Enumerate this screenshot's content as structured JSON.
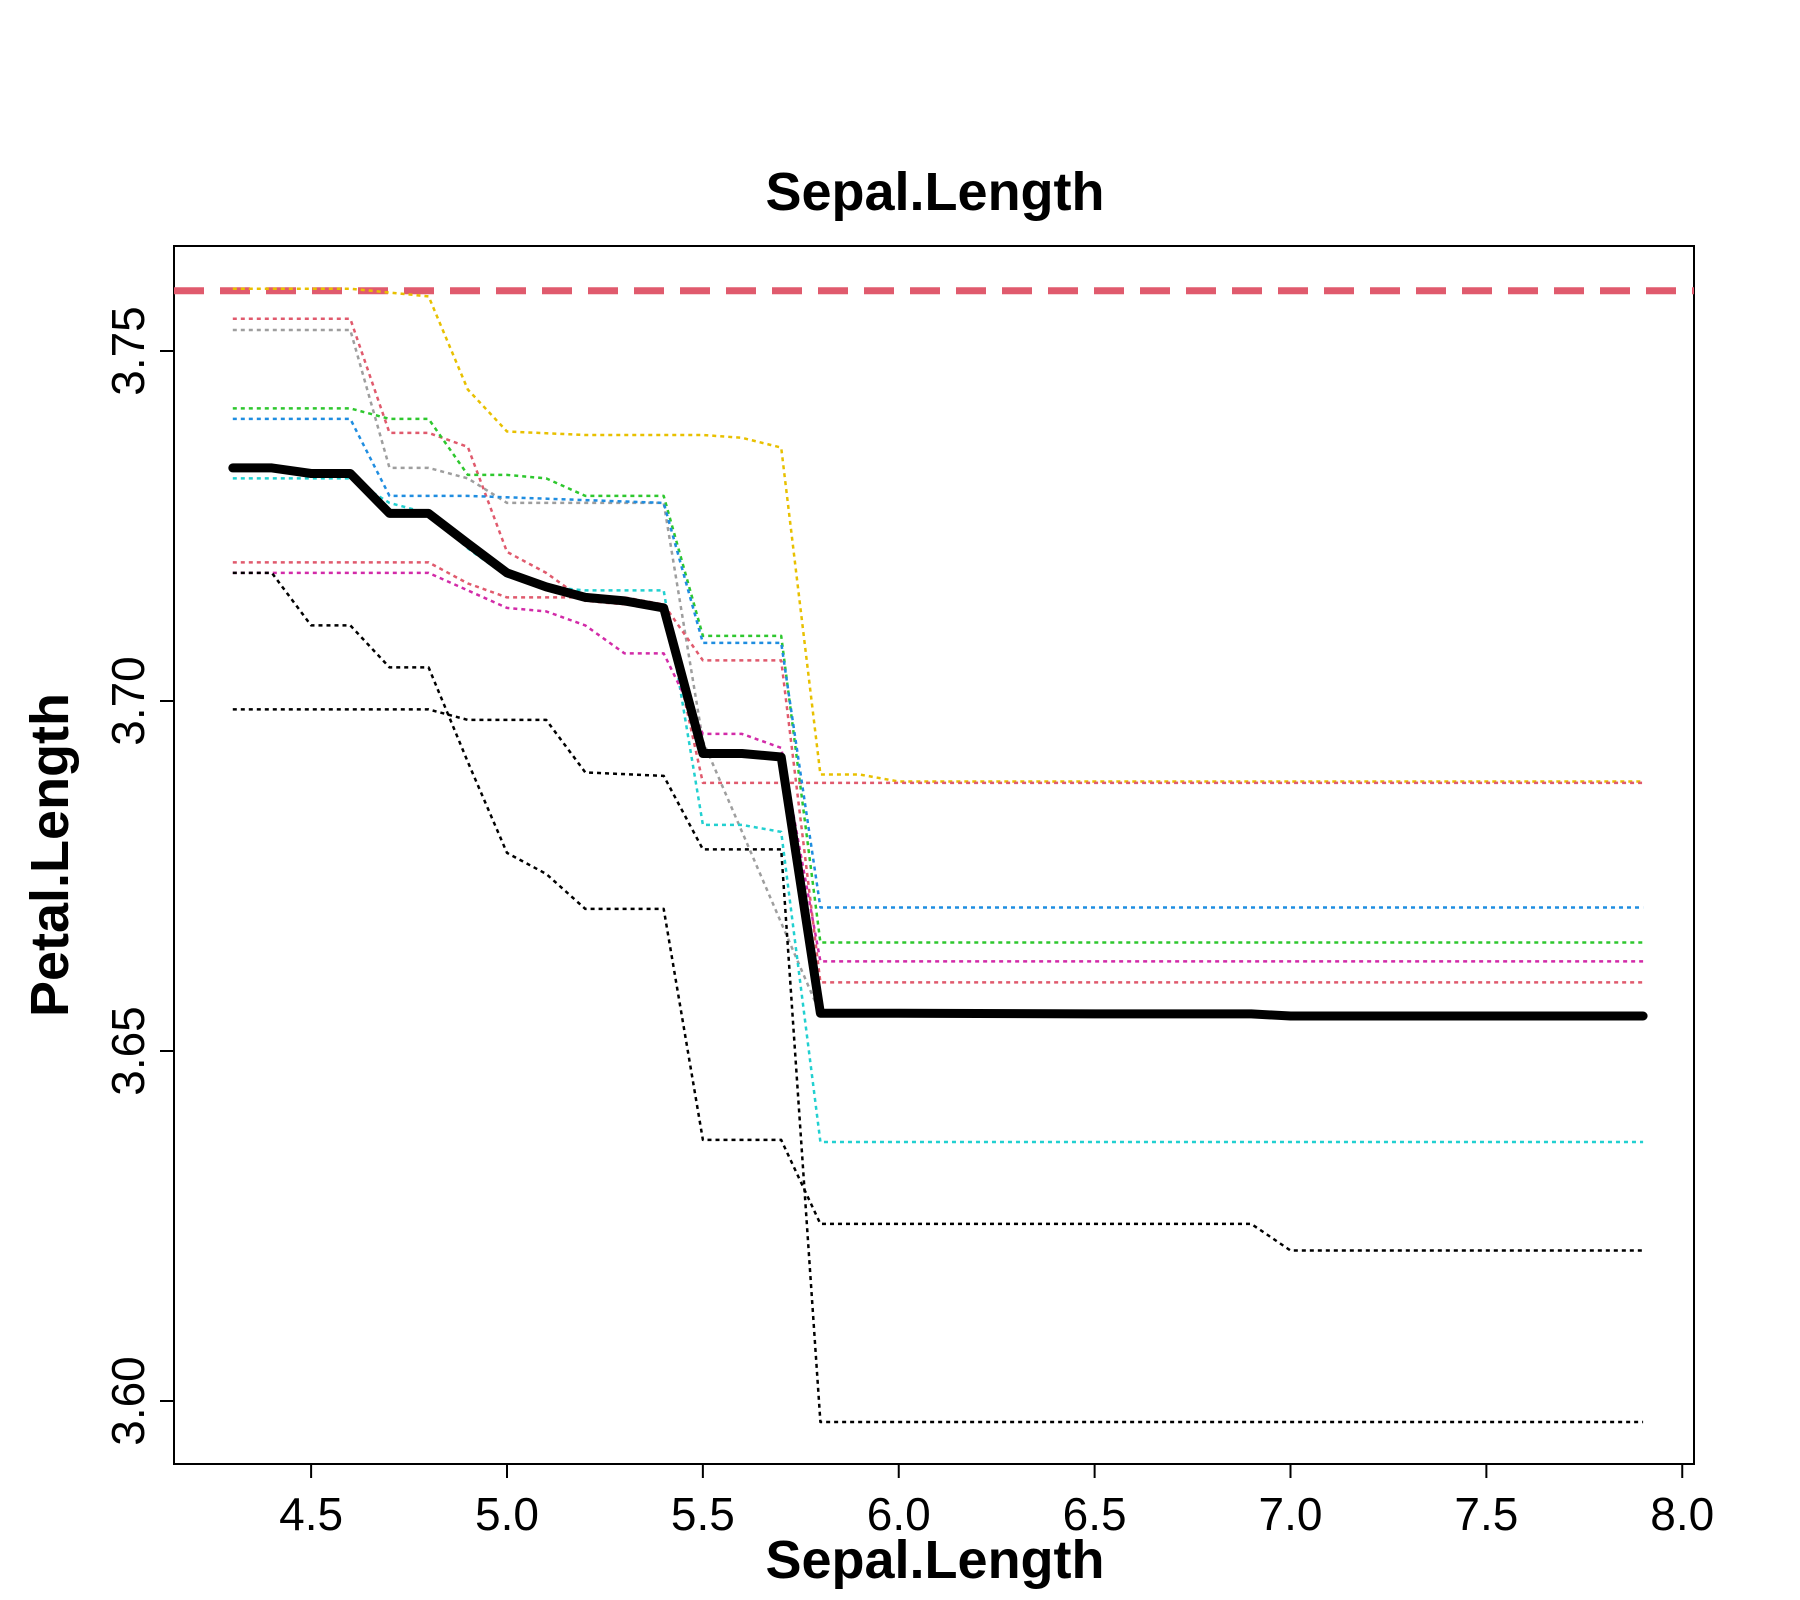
{
  "chart_data": {
    "type": "line",
    "title": "Sepal.Length",
    "xlabel": "Sepal.Length",
    "ylabel": "Petal.Length",
    "xlim": [
      4.15,
      8.03
    ],
    "ylim": [
      3.591,
      3.765
    ],
    "xticks": [
      4.5,
      5.0,
      5.5,
      6.0,
      6.5,
      7.0,
      7.5,
      8.0
    ],
    "xtick_labels": [
      "4.5",
      "5.0",
      "5.5",
      "6.0",
      "6.5",
      "7.0",
      "7.5",
      "8.0"
    ],
    "yticks": [
      3.6,
      3.65,
      3.7,
      3.75
    ],
    "ytick_labels": [
      "3.60",
      "3.65",
      "3.70",
      "3.75"
    ],
    "grid": false,
    "reference_line": {
      "y": 3.7586,
      "color": "#e05a6d",
      "style": "dashed"
    },
    "series": [
      {
        "color": "#000000",
        "style": "solid",
        "x": [
          4.3,
          4.4,
          4.5,
          4.6,
          4.7,
          4.8,
          4.9,
          5.0,
          5.1,
          5.2,
          5.3,
          5.4,
          5.5,
          5.6,
          5.7,
          5.8,
          6.0,
          6.5,
          6.9,
          7.0,
          7.9
        ],
        "y": [
          3.7333,
          3.7333,
          3.7325,
          3.7325,
          3.7268,
          3.7268,
          3.7225,
          3.7183,
          3.7163,
          3.7148,
          3.7143,
          3.7133,
          3.6925,
          3.6925,
          3.692,
          3.6554,
          3.6554,
          3.6553,
          3.6553,
          3.655,
          3.655
        ]
      },
      {
        "color": "#e8c000",
        "style": "dotted",
        "x": [
          4.3,
          4.6,
          4.8,
          4.9,
          5.0,
          5.2,
          5.5,
          5.6,
          5.7,
          5.8,
          5.9,
          6.0,
          7.9
        ],
        "y": [
          3.7589,
          3.7589,
          3.7578,
          3.7445,
          3.7385,
          3.738,
          3.738,
          3.7376,
          3.7362,
          3.6895,
          3.6895,
          3.6885,
          3.6885
        ]
      },
      {
        "color": "#e05a6d",
        "style": "dotted",
        "x": [
          4.3,
          4.6,
          4.7,
          4.8,
          4.9,
          5.0,
          5.1,
          5.2,
          5.3,
          5.4,
          5.5,
          5.8,
          7.9
        ],
        "y": [
          3.7546,
          3.7546,
          3.7383,
          3.7383,
          3.7363,
          3.7213,
          3.7183,
          3.7143,
          3.7138,
          3.7138,
          3.6883,
          3.6883,
          3.6883
        ]
      },
      {
        "color": "#9e9e9e",
        "style": "dotted",
        "x": [
          4.3,
          4.6,
          4.7,
          4.8,
          4.9,
          5.0,
          5.4,
          5.5,
          5.8,
          7.9
        ],
        "y": [
          3.753,
          3.753,
          3.7333,
          3.7333,
          3.7318,
          3.7283,
          3.7283,
          3.6943,
          3.6553,
          3.6553
        ]
      },
      {
        "color": "#2ec72e",
        "style": "dotted",
        "x": [
          4.3,
          4.6,
          4.7,
          4.8,
          4.9,
          5.0,
          5.1,
          5.2,
          5.4,
          5.5,
          5.7,
          5.8,
          7.9
        ],
        "y": [
          3.7418,
          3.7418,
          3.7403,
          3.7403,
          3.7323,
          3.7323,
          3.7318,
          3.7293,
          3.7293,
          3.7093,
          3.7093,
          3.6655,
          3.6655
        ]
      },
      {
        "color": "#1f8de0",
        "style": "dotted",
        "x": [
          4.3,
          4.6,
          4.7,
          4.9,
          5.4,
          5.5,
          5.7,
          5.8,
          7.9
        ],
        "y": [
          3.7403,
          3.7403,
          3.7293,
          3.7293,
          3.7283,
          3.7083,
          3.7083,
          3.6705,
          3.6705
        ]
      },
      {
        "color": "#22d0d0",
        "style": "dotted",
        "x": [
          4.3,
          4.6,
          4.7,
          4.8,
          4.9,
          5.0,
          5.1,
          5.2,
          5.4,
          5.5,
          5.6,
          5.7,
          5.8,
          7.9
        ],
        "y": [
          3.7318,
          3.7318,
          3.7283,
          3.7268,
          3.7218,
          3.7178,
          3.7163,
          3.7158,
          3.7158,
          3.6823,
          3.6823,
          3.6813,
          3.637,
          3.637
        ]
      },
      {
        "color": "#d22ba8",
        "style": "dotted",
        "x": [
          4.3,
          4.8,
          4.9,
          5.0,
          5.1,
          5.2,
          5.3,
          5.4,
          5.5,
          5.6,
          5.7,
          5.8,
          7.9
        ],
        "y": [
          3.7183,
          3.7183,
          3.7158,
          3.7133,
          3.7128,
          3.7108,
          3.7068,
          3.7068,
          3.6953,
          3.6953,
          3.6933,
          3.6628,
          3.6628
        ]
      },
      {
        "color": "#e05a6d",
        "style": "dotted",
        "x": [
          4.3,
          4.8,
          4.9,
          5.0,
          5.3,
          5.4,
          5.5,
          5.7,
          5.8,
          7.9
        ],
        "y": [
          3.7198,
          3.7198,
          3.7168,
          3.7148,
          3.7148,
          3.7138,
          3.7058,
          3.7058,
          3.6598,
          3.6598
        ]
      },
      {
        "color": "#000000",
        "style": "dotted",
        "x": [
          4.3,
          4.4,
          4.5,
          4.6,
          4.7,
          4.8,
          4.9,
          5.0,
          5.1,
          5.2,
          5.4,
          5.5,
          5.7,
          5.8,
          6.0,
          6.5,
          6.9,
          7.0,
          7.9
        ],
        "y": [
          3.7183,
          3.7183,
          3.7108,
          3.7108,
          3.7048,
          3.7048,
          3.6913,
          3.6783,
          3.6753,
          3.6703,
          3.6703,
          3.6373,
          3.6373,
          3.6253,
          3.6253,
          3.6253,
          3.6253,
          3.6215,
          3.6215
        ]
      },
      {
        "color": "#000000",
        "style": "dotted",
        "x": [
          4.3,
          4.8,
          4.9,
          5.1,
          5.2,
          5.4,
          5.5,
          5.7,
          5.8,
          7.9
        ],
        "y": [
          3.6988,
          3.6988,
          3.6973,
          3.6973,
          3.6898,
          3.6893,
          3.6788,
          3.6788,
          3.597,
          3.597
        ]
      }
    ]
  }
}
